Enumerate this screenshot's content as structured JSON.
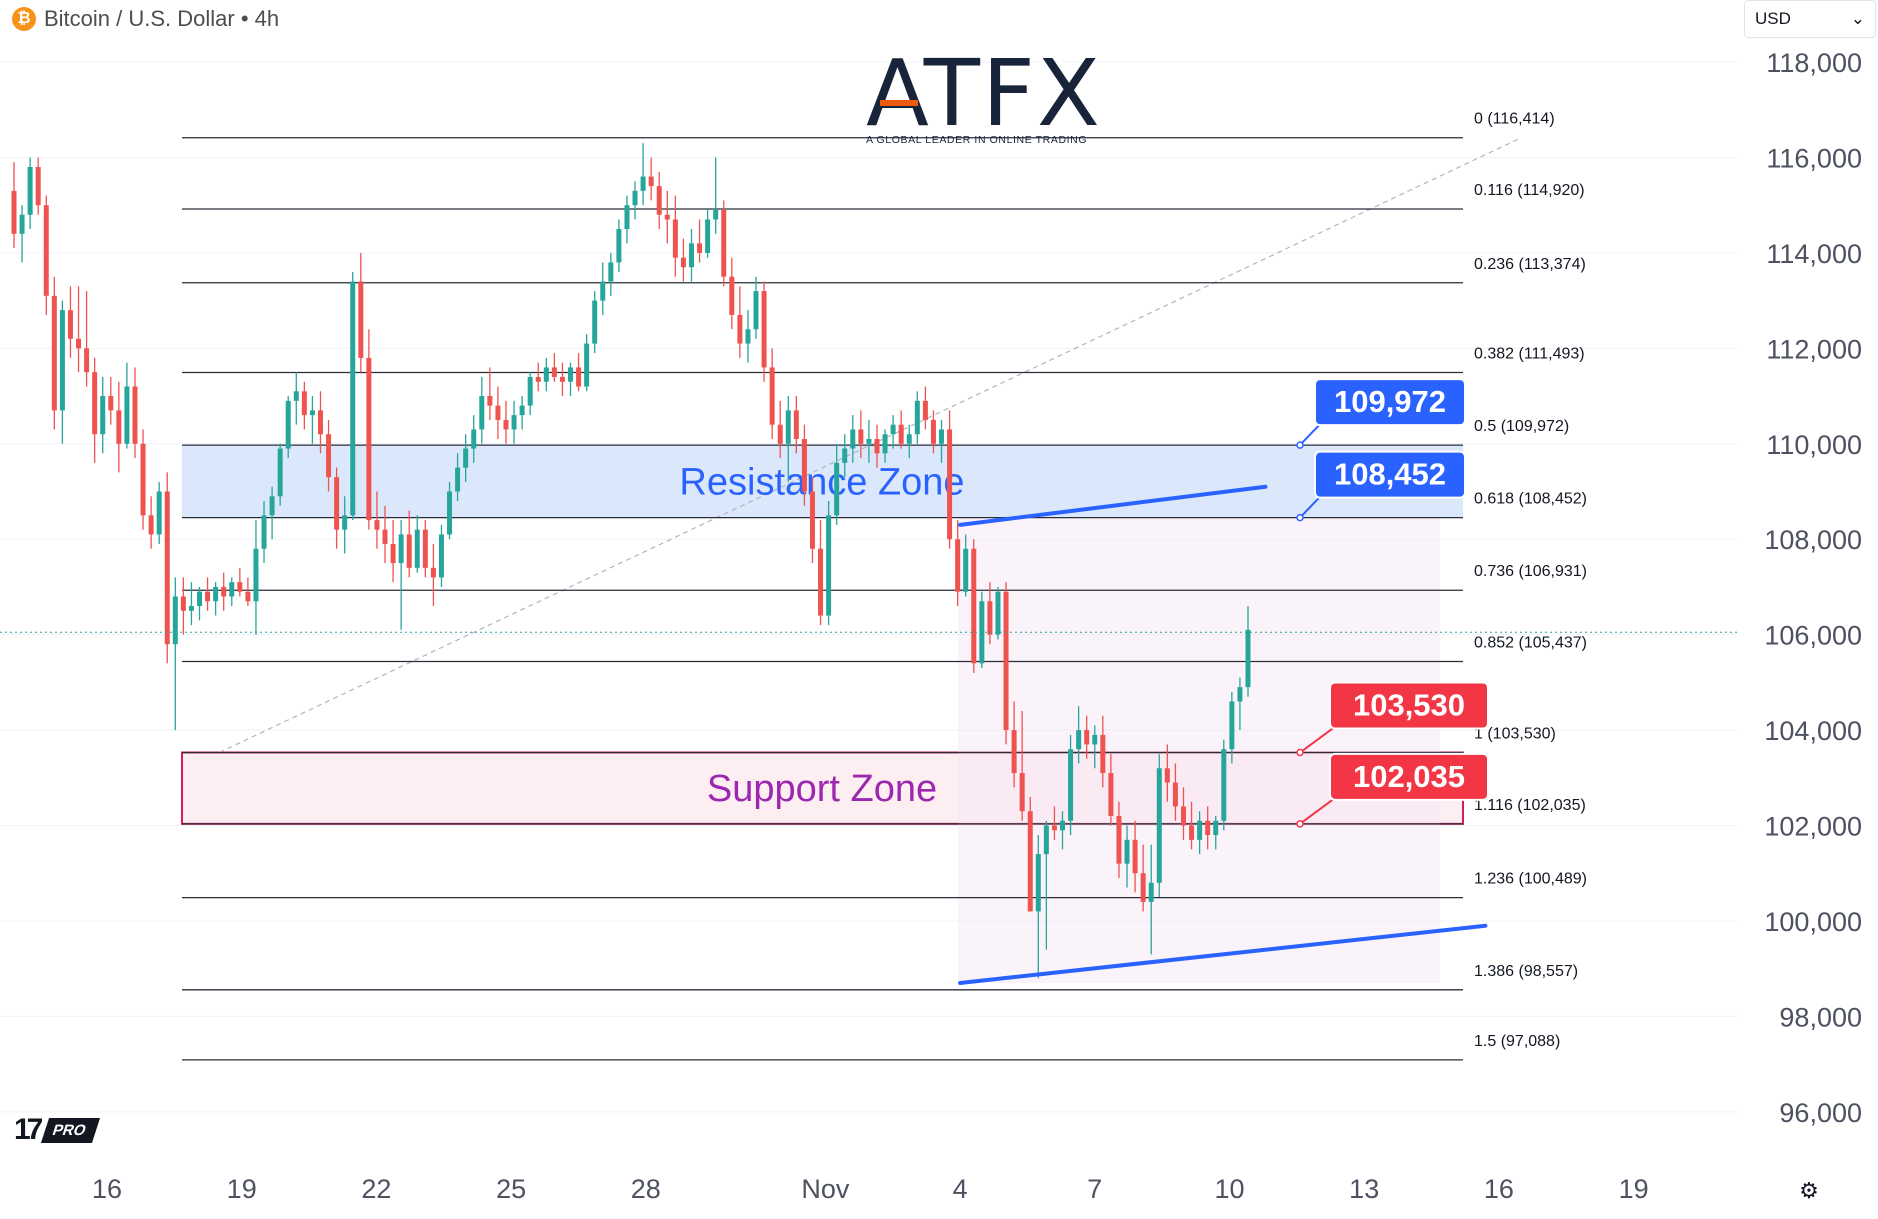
{
  "header": {
    "coin_badge": "₿",
    "symbol_label": "Bitcoin / U.S. Dollar • 4h"
  },
  "currency": {
    "selected": "USD",
    "chevron": "⌄"
  },
  "logo": {
    "name": "ATFX",
    "tagline": "A GLOBAL LEADER IN ONLINE TRADING"
  },
  "branding": {
    "tv_mark": "17",
    "tv_pro": "PRO"
  },
  "icons": {
    "settings": "⚙"
  },
  "chart_data": {
    "type": "candlestick",
    "ylim": [
      95200,
      119300
    ],
    "y_ticks": [
      "118,000",
      "116,000",
      "114,000",
      "112,000",
      "110,000",
      "108,000",
      "106,000",
      "104,000",
      "102,000",
      "100,000",
      "98,000",
      "96,000"
    ],
    "x_ticks": [
      {
        "label": "16",
        "day": 0
      },
      {
        "label": "19",
        "day": 3
      },
      {
        "label": "22",
        "day": 6
      },
      {
        "label": "25",
        "day": 9
      },
      {
        "label": "28",
        "day": 12
      },
      {
        "label": "Nov",
        "day": 16
      },
      {
        "label": "4",
        "day": 19
      },
      {
        "label": "7",
        "day": 22
      },
      {
        "label": "10",
        "day": 25
      },
      {
        "label": "13",
        "day": 28
      },
      {
        "label": "16",
        "day": 31
      },
      {
        "label": "19",
        "day": 34
      }
    ],
    "colors": {
      "up": "#26a69a",
      "down": "#ef5350",
      "trend": "#2962ff",
      "support_border": "#d81b60",
      "label_up": "#2962ff",
      "label_down": "#f23645"
    },
    "fib_levels": [
      {
        "ratio": "0",
        "price": 116414,
        "label": "0 (116,414)"
      },
      {
        "ratio": "0.116",
        "price": 114920,
        "label": "0.116 (114,920)"
      },
      {
        "ratio": "0.236",
        "price": 113374,
        "label": "0.236 (113,374)"
      },
      {
        "ratio": "0.382",
        "price": 111493,
        "label": "0.382 (111,493)"
      },
      {
        "ratio": "0.5",
        "price": 109972,
        "label": "0.5 (109,972)"
      },
      {
        "ratio": "0.618",
        "price": 108452,
        "label": "0.618 (108,452)"
      },
      {
        "ratio": "0.736",
        "price": 106931,
        "label": "0.736 (106,931)"
      },
      {
        "ratio": "0.852",
        "price": 105437,
        "label": "0.852 (105,437)"
      },
      {
        "ratio": "1",
        "price": 103530,
        "label": "1 (103,530)"
      },
      {
        "ratio": "1.116",
        "price": 102035,
        "label": "1.116 (102,035)"
      },
      {
        "ratio": "1.236",
        "price": 100489,
        "label": "1.236 (100,489)"
      },
      {
        "ratio": "1.386",
        "price": 98557,
        "label": "1.386 (98,557)"
      },
      {
        "ratio": "1.5",
        "price": 97088,
        "label": "1.5 (97,088)"
      }
    ],
    "zones": [
      {
        "name": "Resistance Zone",
        "top": 109972,
        "bottom": 108452,
        "fill": "#dbe7fb",
        "text_color": "#2962ff"
      },
      {
        "name": "Support Zone",
        "top": 103530,
        "bottom": 102035,
        "fill": "#fdeef2",
        "text_color": "#9c27b0"
      }
    ],
    "price_labels": [
      {
        "text": "109,972",
        "price": 109972,
        "kind": "up"
      },
      {
        "text": "108,452",
        "price": 108452,
        "kind": "up"
      },
      {
        "text": "103,530",
        "price": 103530,
        "kind": "down"
      },
      {
        "text": "102,035",
        "price": 102035,
        "kind": "down"
      }
    ],
    "trendlines": [
      {
        "from": {
          "day": 19,
          "price": 108300
        },
        "to": {
          "day": 25.8,
          "price": 109100
        }
      },
      {
        "from": {
          "day": 19,
          "price": 98700
        },
        "to": {
          "day": 30.7,
          "price": 99900
        }
      }
    ],
    "fib_anchor": {
      "from": {
        "day": 2.5,
        "price": 103530
      },
      "to": {
        "day": 31.5,
        "price": 116414
      }
    },
    "current_price": 106050,
    "candles": [
      {
        "o": 115300,
        "h": 115900,
        "l": 114100,
        "c": 114400
      },
      {
        "o": 114400,
        "h": 115000,
        "l": 113800,
        "c": 114800
      },
      {
        "o": 114800,
        "h": 116000,
        "l": 114500,
        "c": 115800
      },
      {
        "o": 115800,
        "h": 116000,
        "l": 114800,
        "c": 115000
      },
      {
        "o": 115000,
        "h": 115200,
        "l": 112700,
        "c": 113100
      },
      {
        "o": 113100,
        "h": 113500,
        "l": 110300,
        "c": 110700
      },
      {
        "o": 110700,
        "h": 113000,
        "l": 110000,
        "c": 112800
      },
      {
        "o": 112800,
        "h": 113300,
        "l": 111800,
        "c": 112200
      },
      {
        "o": 112200,
        "h": 113300,
        "l": 111500,
        "c": 112000
      },
      {
        "o": 112000,
        "h": 113200,
        "l": 111200,
        "c": 111500
      },
      {
        "o": 111500,
        "h": 111800,
        "l": 109600,
        "c": 110200
      },
      {
        "o": 110200,
        "h": 111400,
        "l": 109800,
        "c": 111000
      },
      {
        "o": 111000,
        "h": 111400,
        "l": 110400,
        "c": 110700
      },
      {
        "o": 110700,
        "h": 111300,
        "l": 109400,
        "c": 110000
      },
      {
        "o": 110000,
        "h": 111700,
        "l": 109900,
        "c": 111200
      },
      {
        "o": 111200,
        "h": 111600,
        "l": 109700,
        "c": 110000
      },
      {
        "o": 110000,
        "h": 110300,
        "l": 108200,
        "c": 108500
      },
      {
        "o": 108500,
        "h": 108900,
        "l": 107800,
        "c": 108100
      },
      {
        "o": 108100,
        "h": 109200,
        "l": 107900,
        "c": 109000
      },
      {
        "o": 109000,
        "h": 109400,
        "l": 105400,
        "c": 105800
      },
      {
        "o": 105800,
        "h": 107200,
        "l": 104000,
        "c": 106800
      },
      {
        "o": 106800,
        "h": 107200,
        "l": 106000,
        "c": 106500
      },
      {
        "o": 106500,
        "h": 107100,
        "l": 106200,
        "c": 106600
      },
      {
        "o": 106600,
        "h": 107000,
        "l": 106300,
        "c": 106900
      },
      {
        "o": 106900,
        "h": 107200,
        "l": 106500,
        "c": 106700
      },
      {
        "o": 106700,
        "h": 107100,
        "l": 106400,
        "c": 107000
      },
      {
        "o": 107000,
        "h": 107300,
        "l": 106500,
        "c": 106800
      },
      {
        "o": 106800,
        "h": 107200,
        "l": 106600,
        "c": 107100
      },
      {
        "o": 107100,
        "h": 107400,
        "l": 106800,
        "c": 106900
      },
      {
        "o": 106900,
        "h": 107200,
        "l": 106600,
        "c": 106700
      },
      {
        "o": 106700,
        "h": 108400,
        "l": 106000,
        "c": 107800
      },
      {
        "o": 107800,
        "h": 108800,
        "l": 107500,
        "c": 108500
      },
      {
        "o": 108500,
        "h": 109100,
        "l": 108000,
        "c": 108900
      },
      {
        "o": 108900,
        "h": 110000,
        "l": 108700,
        "c": 109900
      },
      {
        "o": 109900,
        "h": 111000,
        "l": 109700,
        "c": 110900
      },
      {
        "o": 110900,
        "h": 111500,
        "l": 110400,
        "c": 111100
      },
      {
        "o": 111100,
        "h": 111300,
        "l": 110300,
        "c": 110600
      },
      {
        "o": 110600,
        "h": 111000,
        "l": 110000,
        "c": 110700
      },
      {
        "o": 110700,
        "h": 111100,
        "l": 109800,
        "c": 110200
      },
      {
        "o": 110200,
        "h": 110500,
        "l": 109000,
        "c": 109300
      },
      {
        "o": 109300,
        "h": 109500,
        "l": 107800,
        "c": 108200
      },
      {
        "o": 108200,
        "h": 108900,
        "l": 107700,
        "c": 108500
      },
      {
        "o": 108500,
        "h": 113600,
        "l": 108400,
        "c": 113400
      },
      {
        "o": 113400,
        "h": 114000,
        "l": 111500,
        "c": 111800
      },
      {
        "o": 111800,
        "h": 112400,
        "l": 108200,
        "c": 108400
      },
      {
        "o": 108400,
        "h": 109000,
        "l": 107800,
        "c": 108200
      },
      {
        "o": 108200,
        "h": 108700,
        "l": 107500,
        "c": 107900
      },
      {
        "o": 107900,
        "h": 108400,
        "l": 107100,
        "c": 107500
      },
      {
        "o": 107500,
        "h": 108400,
        "l": 106100,
        "c": 108100
      },
      {
        "o": 108100,
        "h": 108600,
        "l": 107200,
        "c": 107400
      },
      {
        "o": 107400,
        "h": 108500,
        "l": 107300,
        "c": 108200
      },
      {
        "o": 108200,
        "h": 108400,
        "l": 107200,
        "c": 107400
      },
      {
        "o": 107400,
        "h": 107900,
        "l": 106600,
        "c": 107200
      },
      {
        "o": 107200,
        "h": 108300,
        "l": 107000,
        "c": 108100
      },
      {
        "o": 108100,
        "h": 109200,
        "l": 108000,
        "c": 109000
      },
      {
        "o": 109000,
        "h": 109800,
        "l": 108800,
        "c": 109500
      },
      {
        "o": 109500,
        "h": 110200,
        "l": 109200,
        "c": 109900
      },
      {
        "o": 109900,
        "h": 110600,
        "l": 109600,
        "c": 110300
      },
      {
        "o": 110300,
        "h": 111400,
        "l": 110000,
        "c": 111000
      },
      {
        "o": 111000,
        "h": 111600,
        "l": 110500,
        "c": 110800
      },
      {
        "o": 110800,
        "h": 111200,
        "l": 110100,
        "c": 110500
      },
      {
        "o": 110500,
        "h": 110900,
        "l": 110000,
        "c": 110300
      },
      {
        "o": 110300,
        "h": 110900,
        "l": 110000,
        "c": 110600
      },
      {
        "o": 110600,
        "h": 111000,
        "l": 110300,
        "c": 110800
      },
      {
        "o": 110800,
        "h": 111500,
        "l": 110600,
        "c": 111400
      },
      {
        "o": 111400,
        "h": 111700,
        "l": 111100,
        "c": 111300
      },
      {
        "o": 111300,
        "h": 111800,
        "l": 111100,
        "c": 111600
      },
      {
        "o": 111600,
        "h": 111900,
        "l": 111300,
        "c": 111400
      },
      {
        "o": 111400,
        "h": 111700,
        "l": 111000,
        "c": 111300
      },
      {
        "o": 111300,
        "h": 111700,
        "l": 111000,
        "c": 111600
      },
      {
        "o": 111600,
        "h": 111900,
        "l": 111100,
        "c": 111200
      },
      {
        "o": 111200,
        "h": 112300,
        "l": 111100,
        "c": 112100
      },
      {
        "o": 112100,
        "h": 113200,
        "l": 111900,
        "c": 113000
      },
      {
        "o": 113000,
        "h": 113800,
        "l": 112700,
        "c": 113400
      },
      {
        "o": 113400,
        "h": 114000,
        "l": 113100,
        "c": 113800
      },
      {
        "o": 113800,
        "h": 114700,
        "l": 113600,
        "c": 114500
      },
      {
        "o": 114500,
        "h": 115200,
        "l": 114200,
        "c": 115000
      },
      {
        "o": 115000,
        "h": 115500,
        "l": 114700,
        "c": 115300
      },
      {
        "o": 115300,
        "h": 116300,
        "l": 115000,
        "c": 115600
      },
      {
        "o": 115600,
        "h": 116000,
        "l": 115100,
        "c": 115400
      },
      {
        "o": 115400,
        "h": 115700,
        "l": 114500,
        "c": 114800
      },
      {
        "o": 114800,
        "h": 115300,
        "l": 114200,
        "c": 114700
      },
      {
        "o": 114700,
        "h": 115200,
        "l": 113500,
        "c": 113900
      },
      {
        "o": 113900,
        "h": 114300,
        "l": 113400,
        "c": 113700
      },
      {
        "o": 113700,
        "h": 114500,
        "l": 113400,
        "c": 114200
      },
      {
        "o": 114200,
        "h": 114700,
        "l": 113800,
        "c": 114000
      },
      {
        "o": 114000,
        "h": 114900,
        "l": 113900,
        "c": 114700
      },
      {
        "o": 114700,
        "h": 116000,
        "l": 114400,
        "c": 114900
      },
      {
        "o": 114900,
        "h": 115100,
        "l": 113300,
        "c": 113500
      },
      {
        "o": 113500,
        "h": 113900,
        "l": 112400,
        "c": 112700
      },
      {
        "o": 112700,
        "h": 113300,
        "l": 111800,
        "c": 112100
      },
      {
        "o": 112100,
        "h": 112800,
        "l": 111700,
        "c": 112400
      },
      {
        "o": 112400,
        "h": 113500,
        "l": 112200,
        "c": 113200
      },
      {
        "o": 113200,
        "h": 113400,
        "l": 111300,
        "c": 111600
      },
      {
        "o": 111600,
        "h": 112000,
        "l": 110100,
        "c": 110400
      },
      {
        "o": 110400,
        "h": 110900,
        "l": 109700,
        "c": 110000
      },
      {
        "o": 110000,
        "h": 111000,
        "l": 109200,
        "c": 110700
      },
      {
        "o": 110700,
        "h": 111000,
        "l": 109800,
        "c": 110100
      },
      {
        "o": 110100,
        "h": 110400,
        "l": 108700,
        "c": 109000
      },
      {
        "o": 109000,
        "h": 109300,
        "l": 107500,
        "c": 107800
      },
      {
        "o": 107800,
        "h": 108400,
        "l": 106200,
        "c": 106400
      },
      {
        "o": 106400,
        "h": 108800,
        "l": 106200,
        "c": 108500
      },
      {
        "o": 108500,
        "h": 110000,
        "l": 108300,
        "c": 109600
      },
      {
        "o": 109600,
        "h": 110200,
        "l": 109300,
        "c": 109900
      },
      {
        "o": 109900,
        "h": 110600,
        "l": 109600,
        "c": 110300
      },
      {
        "o": 110300,
        "h": 110700,
        "l": 109700,
        "c": 110000
      },
      {
        "o": 110000,
        "h": 110500,
        "l": 109600,
        "c": 110100
      },
      {
        "o": 110100,
        "h": 110400,
        "l": 109500,
        "c": 109800
      },
      {
        "o": 109800,
        "h": 110300,
        "l": 109600,
        "c": 110200
      },
      {
        "o": 110200,
        "h": 110600,
        "l": 109900,
        "c": 110400
      },
      {
        "o": 110400,
        "h": 110700,
        "l": 109900,
        "c": 110000
      },
      {
        "o": 110000,
        "h": 110400,
        "l": 109700,
        "c": 110200
      },
      {
        "o": 110200,
        "h": 111100,
        "l": 110000,
        "c": 110900
      },
      {
        "o": 110900,
        "h": 111200,
        "l": 110300,
        "c": 110500
      },
      {
        "o": 110500,
        "h": 110700,
        "l": 109800,
        "c": 110000
      },
      {
        "o": 110000,
        "h": 110500,
        "l": 109600,
        "c": 110300
      },
      {
        "o": 110300,
        "h": 110700,
        "l": 107800,
        "c": 108000
      },
      {
        "o": 108000,
        "h": 108400,
        "l": 106600,
        "c": 106900
      },
      {
        "o": 106900,
        "h": 108100,
        "l": 106800,
        "c": 107800
      },
      {
        "o": 107800,
        "h": 108000,
        "l": 105200,
        "c": 105400
      },
      {
        "o": 105400,
        "h": 106900,
        "l": 105300,
        "c": 106700
      },
      {
        "o": 106700,
        "h": 107100,
        "l": 105800,
        "c": 106000
      },
      {
        "o": 106000,
        "h": 107000,
        "l": 105900,
        "c": 106900
      },
      {
        "o": 106900,
        "h": 107100,
        "l": 103700,
        "c": 104000
      },
      {
        "o": 104000,
        "h": 104600,
        "l": 102800,
        "c": 103100
      },
      {
        "o": 103100,
        "h": 104400,
        "l": 102100,
        "c": 102300
      },
      {
        "o": 102300,
        "h": 102600,
        "l": 100200,
        "c": 100200
      },
      {
        "o": 100200,
        "h": 101800,
        "l": 98800,
        "c": 101400
      },
      {
        "o": 101400,
        "h": 102100,
        "l": 99400,
        "c": 102000
      },
      {
        "o": 102000,
        "h": 102400,
        "l": 101700,
        "c": 101900
      },
      {
        "o": 101900,
        "h": 102300,
        "l": 101500,
        "c": 102100
      },
      {
        "o": 102100,
        "h": 103900,
        "l": 101800,
        "c": 103600
      },
      {
        "o": 103600,
        "h": 104500,
        "l": 103300,
        "c": 104000
      },
      {
        "o": 104000,
        "h": 104300,
        "l": 103400,
        "c": 103700
      },
      {
        "o": 103700,
        "h": 104100,
        "l": 103200,
        "c": 103900
      },
      {
        "o": 103900,
        "h": 104300,
        "l": 102800,
        "c": 103100
      },
      {
        "o": 103100,
        "h": 103500,
        "l": 102000,
        "c": 102200
      },
      {
        "o": 102200,
        "h": 102500,
        "l": 100900,
        "c": 101200
      },
      {
        "o": 101200,
        "h": 102000,
        "l": 100700,
        "c": 101700
      },
      {
        "o": 101700,
        "h": 102100,
        "l": 100600,
        "c": 101000
      },
      {
        "o": 101000,
        "h": 101600,
        "l": 100200,
        "c": 100400
      },
      {
        "o": 100400,
        "h": 101600,
        "l": 99300,
        "c": 100800
      },
      {
        "o": 100800,
        "h": 103500,
        "l": 100500,
        "c": 103200
      },
      {
        "o": 103200,
        "h": 103700,
        "l": 102500,
        "c": 102900
      },
      {
        "o": 102900,
        "h": 103300,
        "l": 102100,
        "c": 102400
      },
      {
        "o": 102400,
        "h": 102800,
        "l": 101700,
        "c": 102000
      },
      {
        "o": 102000,
        "h": 102500,
        "l": 101500,
        "c": 101700
      },
      {
        "o": 101700,
        "h": 102300,
        "l": 101400,
        "c": 102100
      },
      {
        "o": 102100,
        "h": 102400,
        "l": 101500,
        "c": 101800
      },
      {
        "o": 101800,
        "h": 102200,
        "l": 101500,
        "c": 102100
      },
      {
        "o": 102100,
        "h": 103800,
        "l": 101900,
        "c": 103600
      },
      {
        "o": 103600,
        "h": 104800,
        "l": 103300,
        "c": 104600
      },
      {
        "o": 104600,
        "h": 105100,
        "l": 104000,
        "c": 104900
      },
      {
        "o": 104900,
        "h": 106600,
        "l": 104700,
        "c": 106100
      }
    ]
  }
}
